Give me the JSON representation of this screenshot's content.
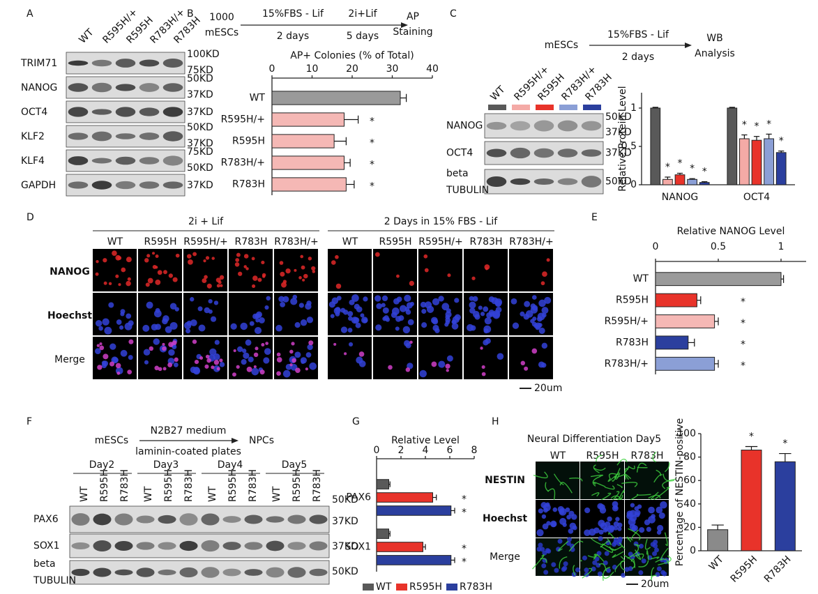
{
  "figure": {
    "A": {
      "letter": "A",
      "lanes": [
        "WT",
        "R595H/+",
        "R595H",
        "R783H/+",
        "R783H"
      ],
      "rows": [
        {
          "name": "TRIM71",
          "markers": [
            "100KD",
            "75KD"
          ]
        },
        {
          "name": "NANOG",
          "markers": [
            "50KD",
            "37KD"
          ]
        },
        {
          "name": "OCT4",
          "markers": [
            "37KD"
          ]
        },
        {
          "name": "KLF2",
          "markers": [
            "50KD",
            "37KD"
          ]
        },
        {
          "name": "KLF4",
          "markers": [
            "75KD",
            "50KD"
          ]
        },
        {
          "name": "GAPDH",
          "markers": [
            "37KD"
          ]
        }
      ]
    },
    "B": {
      "letter": "B",
      "start": [
        "1000",
        "mESCs"
      ],
      "step1": "15%FBS - Lif",
      "time1": "2 days",
      "step2": "2i+Lif",
      "time2": "5 days",
      "end": [
        "AP",
        "Staining"
      ]
    },
    "C": {
      "letter": "C",
      "start": "mESCs",
      "step": "15%FBS - Lif",
      "time": "2 days",
      "end": [
        "WB",
        "Analysis"
      ],
      "lanes": [
        "WT",
        "R595H/+",
        "R595H",
        "R783H/+",
        "R783H"
      ],
      "lane_colors": [
        "#595959",
        "#f4aaa6",
        "#e8332a",
        "#8b9fd6",
        "#2b3f9e"
      ],
      "rows": [
        {
          "name": [
            "NANOG"
          ],
          "markers": [
            "50KD",
            "37KD"
          ]
        },
        {
          "name": [
            "OCT4"
          ],
          "markers": [
            "37KD"
          ]
        },
        {
          "name": [
            "beta",
            "TUBULIN"
          ],
          "markers": [
            "50KD"
          ]
        }
      ]
    },
    "D": {
      "letter": "D",
      "groups": [
        {
          "title": "2i + Lif",
          "columns": [
            "WT",
            "R595H",
            "R595H/+",
            "R783H",
            "R783H/+"
          ]
        },
        {
          "title": "2 Days in 15% FBS - Lif",
          "columns": [
            "WT",
            "R595H",
            "R595H/+",
            "R783H",
            "R783H/+"
          ]
        }
      ],
      "rows": [
        "NANOG",
        "Hoechst",
        "Merge"
      ],
      "row_colors": [
        "#e8462a",
        "#3a3aa8",
        "#222222"
      ],
      "scale": "20um"
    },
    "E": {
      "letter": "E"
    },
    "F": {
      "letter": "F",
      "start": "mESCs",
      "step": "N2B27 medium",
      "step2": "laminin-coated plates",
      "end": "NPCs",
      "days": [
        {
          "name": "Day2",
          "lanes": [
            "WT",
            "R595H",
            "R783H"
          ]
        },
        {
          "name": "Day3",
          "lanes": [
            "WT",
            "R595H",
            "R783H"
          ]
        },
        {
          "name": "Day4",
          "lanes": [
            "WT",
            "R595H",
            "R783H"
          ]
        },
        {
          "name": "Day5",
          "lanes": [
            "WT",
            "R595H",
            "R783H"
          ]
        }
      ],
      "rows": [
        {
          "name": [
            "PAX6"
          ],
          "markers": [
            "50KD",
            "37KD"
          ]
        },
        {
          "name": [
            "SOX1"
          ],
          "markers": [
            "37KD"
          ]
        },
        {
          "name": [
            "beta",
            "TUBULIN"
          ],
          "markers": [
            "50KD"
          ]
        }
      ]
    },
    "G": {
      "letter": "G"
    },
    "H": {
      "letter": "H",
      "title": "Neural Differentiation Day5",
      "columns": [
        "WT",
        "R595H",
        "R783H"
      ],
      "rows": [
        "NESTIN",
        "Hoechst",
        "Merge"
      ],
      "row_colors": [
        "#2bb52b",
        "#3a3aa8",
        "#222222"
      ],
      "scale": "20um"
    }
  },
  "chart_data": [
    {
      "type": "barh",
      "title": "AP+ Colonies (% of Total)",
      "categories": [
        "WT",
        "R595H/+",
        "R595H",
        "R783H/+",
        "R783H"
      ],
      "values": [
        32,
        18,
        15.5,
        18,
        18.5
      ],
      "errors": [
        1.5,
        3.5,
        3,
        1.5,
        2
      ],
      "colors": [
        "#9a9a9a",
        "#f5b8b5",
        "#f5b8b5",
        "#f5b8b5",
        "#f5b8b5"
      ],
      "significance": [
        null,
        "*",
        "*",
        "*",
        "*"
      ],
      "xlim": [
        0,
        40
      ],
      "xticks": [
        0,
        10,
        20,
        30,
        40
      ]
    },
    {
      "type": "bar",
      "y_label": "Relative Protein Level",
      "categories": [
        "NANOG",
        "OCT4"
      ],
      "series": [
        {
          "color": "#595959",
          "values": [
            1,
            1
          ],
          "errors": [
            0.01,
            0.01
          ],
          "significance": [
            null,
            null
          ]
        },
        {
          "color": "#f4aaa6",
          "values": [
            0.07,
            0.6
          ],
          "errors": [
            0.03,
            0.05
          ],
          "significance": [
            "*",
            "*"
          ]
        },
        {
          "color": "#e8332a",
          "values": [
            0.13,
            0.58
          ],
          "errors": [
            0.02,
            0.05
          ],
          "significance": [
            "*",
            "*"
          ]
        },
        {
          "color": "#8b9fd6",
          "values": [
            0.07,
            0.6
          ],
          "errors": [
            0.01,
            0.06
          ],
          "significance": [
            "*",
            "*"
          ]
        },
        {
          "color": "#2b3f9e",
          "values": [
            0.03,
            0.42
          ],
          "errors": [
            0.01,
            0.02
          ],
          "significance": [
            "*",
            "*"
          ]
        }
      ],
      "ylim": [
        0,
        1.2
      ],
      "yticks": [
        0,
        0.5,
        1
      ]
    },
    {
      "type": "barh",
      "title": "Relative NANOG Level",
      "categories": [
        "WT",
        "R595H",
        "R595H/+",
        "R783H",
        "R783H/+"
      ],
      "values": [
        1,
        0.33,
        0.47,
        0.26,
        0.47
      ],
      "errors": [
        0.02,
        0.03,
        0.03,
        0.05,
        0.03
      ],
      "colors": [
        "#9a9a9a",
        "#e8332a",
        "#f5b8b5",
        "#2b3f9e",
        "#8b9fd6"
      ],
      "significance": [
        null,
        "*",
        "*",
        "*",
        "*"
      ],
      "xlim": [
        0,
        1.2
      ],
      "xticks": [
        0,
        0.5,
        1
      ]
    },
    {
      "type": "barh",
      "title": "Relative Level",
      "categories": [
        "PAX6",
        "SOX1"
      ],
      "series": [
        {
          "name": "WT",
          "color": "#595959",
          "values": [
            1,
            1
          ],
          "errors": [
            0.1,
            0.1
          ],
          "significance": [
            null,
            null
          ]
        },
        {
          "name": "R595H",
          "color": "#e8332a",
          "values": [
            4.6,
            3.8
          ],
          "errors": [
            0.3,
            0.2
          ],
          "significance": [
            "*",
            "*"
          ]
        },
        {
          "name": "R783H",
          "color": "#2b3f9e",
          "values": [
            6.1,
            6.1
          ],
          "errors": [
            0.3,
            0.3
          ],
          "significance": [
            "*",
            "*"
          ]
        }
      ],
      "xlim": [
        0,
        8
      ],
      "xticks": [
        0,
        2,
        4,
        6,
        8
      ],
      "legend": "bottom"
    },
    {
      "type": "bar",
      "y_label": "Percentage of NESTIN-positive",
      "categories": [
        "WT",
        "R595H",
        "R783H"
      ],
      "values": [
        18,
        86,
        76
      ],
      "errors": [
        4,
        3,
        7
      ],
      "colors": [
        "#8a8a8a",
        "#e8332a",
        "#2b3f9e"
      ],
      "significance": [
        null,
        "*",
        "*"
      ],
      "ylim": [
        0,
        100
      ],
      "yticks": [
        0,
        20,
        40,
        60,
        80,
        100
      ]
    }
  ]
}
